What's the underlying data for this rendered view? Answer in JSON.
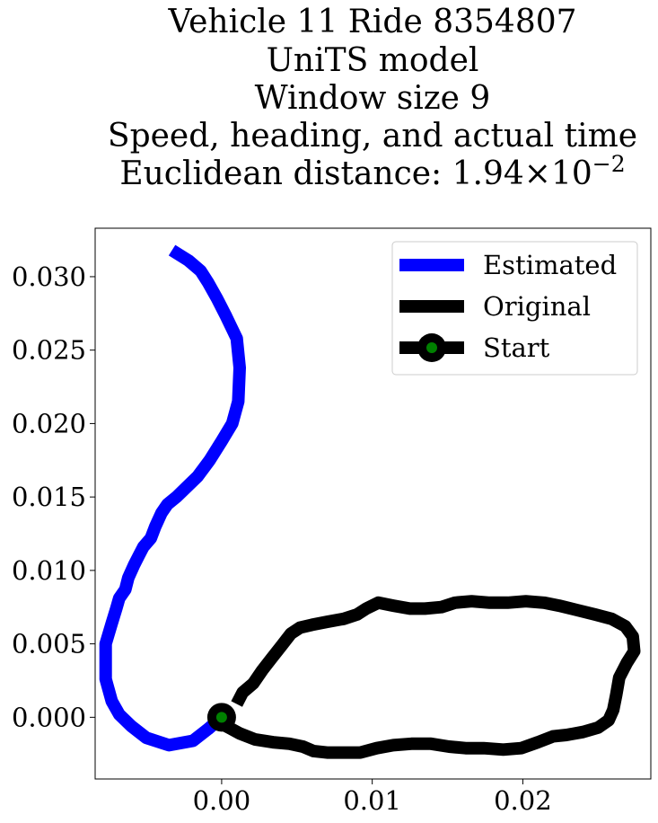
{
  "title_lines": [
    "Vehicle 11 Ride 8354807",
    "UniTS model",
    "Window size 9",
    "Speed, heading, and actual time"
  ],
  "title_distance": {
    "prefix": "Euclidean distance: ",
    "mantissa": "1.94",
    "times": "×",
    "base": "10",
    "exponent": "−2"
  },
  "chart_data": {
    "type": "line",
    "xlim": [
      -0.0084,
      0.0285
    ],
    "ylim": [
      -0.0042,
      0.0333
    ],
    "x_ticks": [
      0.0,
      0.01,
      0.02
    ],
    "x_tick_labels": [
      "0.00",
      "0.01",
      "0.02"
    ],
    "y_ticks": [
      0.0,
      0.005,
      0.01,
      0.015,
      0.02,
      0.025,
      0.03
    ],
    "y_tick_labels": [
      "0.000",
      "0.005",
      "0.010",
      "0.015",
      "0.020",
      "0.025",
      "0.030"
    ],
    "grid": false,
    "legend_position": "top-right",
    "series": [
      {
        "name": "Estimated",
        "color": "#0000ff",
        "points": [
          [
            0.0,
            0.0
          ],
          [
            -0.0009,
            -0.0008
          ],
          [
            -0.0019,
            -0.0016
          ],
          [
            -0.0035,
            -0.0019
          ],
          [
            -0.005,
            -0.0014
          ],
          [
            -0.006,
            -0.0006
          ],
          [
            -0.0068,
            0.0002
          ],
          [
            -0.0073,
            0.0011
          ],
          [
            -0.0077,
            0.0026
          ],
          [
            -0.0077,
            0.005
          ],
          [
            -0.0073,
            0.0064
          ],
          [
            -0.007,
            0.0074
          ],
          [
            -0.0068,
            0.0081
          ],
          [
            -0.0064,
            0.0087
          ],
          [
            -0.0062,
            0.0095
          ],
          [
            -0.0058,
            0.0104
          ],
          [
            -0.0055,
            0.011
          ],
          [
            -0.0052,
            0.0116
          ],
          [
            -0.0047,
            0.0122
          ],
          [
            -0.0044,
            0.013
          ],
          [
            -0.004,
            0.0139
          ],
          [
            -0.0036,
            0.0145
          ],
          [
            -0.003,
            0.015
          ],
          [
            -0.0024,
            0.0156
          ],
          [
            -0.0016,
            0.0164
          ],
          [
            -0.0008,
            0.0175
          ],
          [
            0.0,
            0.0188
          ],
          [
            0.0007,
            0.02
          ],
          [
            0.0011,
            0.0215
          ],
          [
            0.0012,
            0.0238
          ],
          [
            0.001,
            0.0258
          ],
          [
            0.0003,
            0.0273
          ],
          [
            -0.0003,
            0.0285
          ],
          [
            -0.0009,
            0.0296
          ],
          [
            -0.0014,
            0.0304
          ],
          [
            -0.0022,
            0.0311
          ],
          [
            -0.0033,
            0.0318
          ]
        ]
      },
      {
        "name": "Original",
        "color": "#000000",
        "points": [
          [
            0.001,
            0.0009
          ],
          [
            0.0014,
            0.0017
          ],
          [
            0.0021,
            0.0023
          ],
          [
            0.0027,
            0.0032
          ],
          [
            0.0033,
            0.004
          ],
          [
            0.004,
            0.0049
          ],
          [
            0.0046,
            0.0057
          ],
          [
            0.0052,
            0.0061
          ],
          [
            0.006,
            0.0063
          ],
          [
            0.007,
            0.0065
          ],
          [
            0.0081,
            0.0067
          ],
          [
            0.009,
            0.007
          ],
          [
            0.0096,
            0.0074
          ],
          [
            0.0104,
            0.0078
          ],
          [
            0.0114,
            0.0076
          ],
          [
            0.0125,
            0.0074
          ],
          [
            0.0135,
            0.0074
          ],
          [
            0.0146,
            0.0075
          ],
          [
            0.0155,
            0.0078
          ],
          [
            0.0166,
            0.0079
          ],
          [
            0.0178,
            0.0078
          ],
          [
            0.019,
            0.0078
          ],
          [
            0.0202,
            0.0079
          ],
          [
            0.0214,
            0.0078
          ],
          [
            0.0224,
            0.0076
          ],
          [
            0.0236,
            0.0073
          ],
          [
            0.0248,
            0.007
          ],
          [
            0.0259,
            0.0067
          ],
          [
            0.0268,
            0.0062
          ],
          [
            0.0273,
            0.0055
          ],
          [
            0.0274,
            0.0045
          ],
          [
            0.0269,
            0.0037
          ],
          [
            0.0264,
            0.0027
          ],
          [
            0.0262,
            0.0015
          ],
          [
            0.026,
            0.0005
          ],
          [
            0.0257,
            -0.0002
          ],
          [
            0.025,
            -0.0007
          ],
          [
            0.024,
            -0.001
          ],
          [
            0.0229,
            -0.0012
          ],
          [
            0.022,
            -0.0013
          ],
          [
            0.021,
            -0.0017
          ],
          [
            0.0199,
            -0.0021
          ],
          [
            0.0187,
            -0.0022
          ],
          [
            0.0174,
            -0.0021
          ],
          [
            0.0162,
            -0.0021
          ],
          [
            0.0151,
            -0.002
          ],
          [
            0.0139,
            -0.0018
          ],
          [
            0.0126,
            -0.0018
          ],
          [
            0.0114,
            -0.0019
          ],
          [
            0.0103,
            -0.0021
          ],
          [
            0.0092,
            -0.0024
          ],
          [
            0.008,
            -0.0024
          ],
          [
            0.007,
            -0.0024
          ],
          [
            0.0061,
            -0.0023
          ],
          [
            0.0054,
            -0.002
          ],
          [
            0.0045,
            -0.0018
          ],
          [
            0.0034,
            -0.0017
          ],
          [
            0.0022,
            -0.0015
          ],
          [
            0.0012,
            -0.0011
          ],
          [
            0.0003,
            -0.0006
          ],
          [
            0.0,
            0.0
          ]
        ]
      },
      {
        "name": "Start",
        "color": "#000000",
        "marker_face_color": "#008000",
        "points": [
          [
            0.0,
            0.0
          ]
        ]
      }
    ]
  }
}
